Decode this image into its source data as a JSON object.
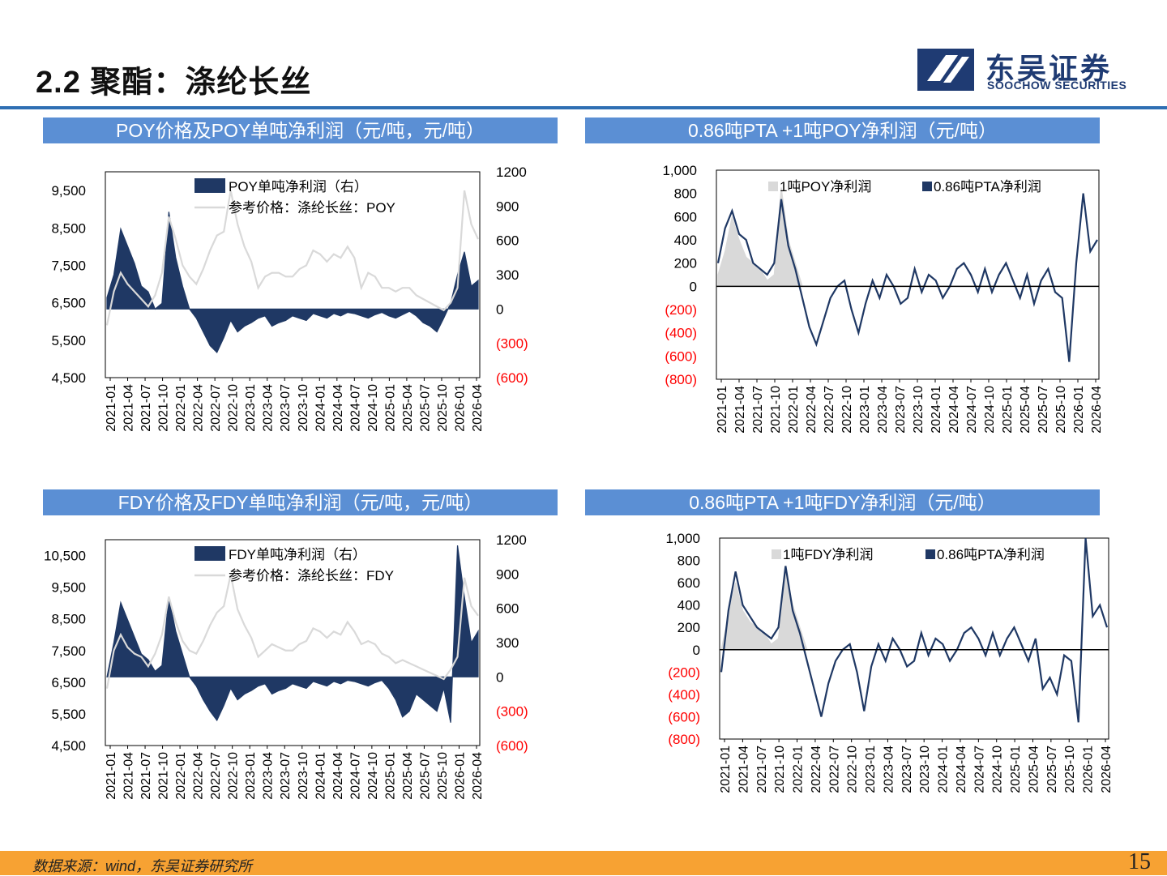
{
  "page": {
    "title": "2.2 聚酯：涤纶长丝",
    "logo": {
      "name_cn": "东吴证券",
      "name_en": "SOOCHOW SECURITIES"
    },
    "source": "数据来源：wind，东吴证券研究所",
    "page_number": "15"
  },
  "colors": {
    "navy": "#1f3864",
    "gray": "#d9d9d9",
    "band": "#5b8fd4",
    "negative": "#ff0000",
    "footer": "#f7a233"
  },
  "chart_data": [
    {
      "type": "area",
      "title": "POY价格及POY单吨净利润（元/吨，元/吨）",
      "x_ticks": [
        "2021-01",
        "2021-04",
        "2021-07",
        "2021-10",
        "2022-01",
        "2022-04",
        "2022-07",
        "2022-10",
        "2023-01",
        "2023-04",
        "2023-07",
        "2023-10",
        "2024-01",
        "2024-04",
        "2024-07",
        "2024-10",
        "2025-01",
        "2025-04",
        "2025-07",
        "2025-10",
        "2026-01",
        "2026-04"
      ],
      "y_left": {
        "ticks": [
          "9,500",
          "8,500",
          "7,500",
          "6,500",
          "5,500",
          "4,500"
        ],
        "range": [
          4500,
          10000
        ]
      },
      "y_right": {
        "ticks": [
          "1200",
          "900",
          "600",
          "300",
          "0",
          "(300)",
          "(600)"
        ],
        "range": [
          -600,
          1200
        ]
      },
      "legend": [
        "POY单吨净利润（右）",
        "参考价格：涤纶长丝：POY"
      ],
      "series": [
        {
          "name": "POY单吨净利润（右）",
          "axis": "right",
          "values": [
            100,
            300,
            700,
            550,
            400,
            200,
            150,
            0,
            50,
            850,
            450,
            200,
            0,
            -80,
            -200,
            -320,
            -380,
            -250,
            -100,
            -200,
            -150,
            -120,
            -80,
            -60,
            -150,
            -120,
            -100,
            -60,
            -80,
            -100,
            -40,
            -60,
            -80,
            -40,
            -60,
            -30,
            -40,
            -60,
            -80,
            -50,
            -30,
            -60,
            -80,
            -50,
            -20,
            -60,
            -120,
            -150,
            -200,
            -80,
            50,
            300,
            500,
            200,
            250
          ]
        },
        {
          "name": "参考价格：涤纶长丝：POY",
          "axis": "left",
          "values": [
            5900,
            6800,
            7300,
            7000,
            6800,
            6600,
            6400,
            6700,
            7300,
            8800,
            8200,
            7500,
            7200,
            7000,
            7400,
            7900,
            8300,
            8400,
            9500,
            8600,
            8000,
            7600,
            6900,
            7200,
            7300,
            7300,
            7200,
            7200,
            7400,
            7500,
            7900,
            7800,
            7600,
            7800,
            7700,
            8000,
            7700,
            6900,
            7300,
            7200,
            6900,
            6900,
            6800,
            6900,
            6900,
            6700,
            6600,
            6500,
            6400,
            6300,
            6500,
            6900,
            9500,
            8600,
            8200
          ]
        }
      ]
    },
    {
      "type": "area",
      "title": "0.86吨PTA +1吨POY净利润（元/吨）",
      "x_ticks": [
        "2021-01",
        "2021-04",
        "2021-07",
        "2021-10",
        "2022-01",
        "2022-04",
        "2022-07",
        "2022-10",
        "2023-01",
        "2023-04",
        "2023-07",
        "2023-10",
        "2024-01",
        "2024-04",
        "2024-07",
        "2024-10",
        "2025-01",
        "2025-04",
        "2025-07",
        "2025-10",
        "2026-01",
        "2026-04"
      ],
      "y": {
        "ticks": [
          "1,000",
          "800",
          "600",
          "400",
          "200",
          "0",
          "(200)",
          "(400)",
          "(600)",
          "(800)"
        ],
        "range": [
          -800,
          1000
        ]
      },
      "legend": [
        "1吨POY净利润",
        "0.86吨PTA净利润"
      ],
      "series": [
        {
          "name": "1吨POY净利润",
          "values": [
            100,
            300,
            600,
            400,
            250,
            200,
            150,
            50,
            100,
            850,
            400,
            200,
            0,
            0,
            0,
            0,
            0,
            0,
            0,
            0,
            0,
            0,
            0,
            0,
            0,
            0,
            0,
            0,
            0,
            0,
            0,
            0,
            0,
            0,
            0,
            0,
            0,
            0,
            0,
            0,
            0,
            0,
            0,
            0,
            0,
            0,
            0,
            0,
            0,
            0,
            0,
            0,
            0,
            0,
            0
          ]
        },
        {
          "name": "0.86吨PTA净利润",
          "values": [
            200,
            500,
            650,
            450,
            400,
            200,
            150,
            100,
            200,
            750,
            350,
            150,
            -100,
            -350,
            -500,
            -300,
            -100,
            0,
            50,
            -200,
            -400,
            -150,
            50,
            -100,
            100,
            0,
            -150,
            -100,
            150,
            -50,
            100,
            50,
            -100,
            0,
            150,
            200,
            100,
            -50,
            150,
            -50,
            100,
            200,
            50,
            -100,
            100,
            -150,
            50,
            150,
            -50,
            -100,
            -650,
            200,
            800,
            300,
            400
          ]
        }
      ]
    },
    {
      "type": "area",
      "title": "FDY价格及FDY单吨净利润（元/吨，元/吨）",
      "x_ticks": [
        "2021-01",
        "2021-04",
        "2021-07",
        "2021-10",
        "2022-01",
        "2022-04",
        "2022-07",
        "2022-10",
        "2023-01",
        "2023-04",
        "2023-07",
        "2023-10",
        "2024-01",
        "2024-04",
        "2024-07",
        "2024-10",
        "2025-01",
        "2025-04",
        "2025-07",
        "2025-10",
        "2026-01",
        "2026-04"
      ],
      "y_left": {
        "ticks": [
          "10,500",
          "9,500",
          "8,500",
          "7,500",
          "6,500",
          "5,500",
          "4,500"
        ],
        "range": [
          4500,
          11000
        ]
      },
      "y_right": {
        "ticks": [
          "1200",
          "900",
          "600",
          "300",
          "0",
          "(300)",
          "(600)"
        ],
        "range": [
          -600,
          1200
        ]
      },
      "legend": [
        "FDY单吨净利润（右）",
        "参考价格：涤纶长丝：FDY"
      ],
      "series": [
        {
          "name": "FDY单吨净利润（右）",
          "axis": "right",
          "values": [
            0,
            300,
            650,
            500,
            350,
            200,
            150,
            50,
            100,
            700,
            400,
            200,
            0,
            -80,
            -200,
            -300,
            -380,
            -250,
            -100,
            -200,
            -150,
            -120,
            -80,
            -60,
            -150,
            -120,
            -100,
            -60,
            -80,
            -100,
            -40,
            -60,
            -80,
            -40,
            -60,
            -30,
            -40,
            -60,
            -80,
            -50,
            -30,
            -100,
            -200,
            -350,
            -300,
            -150,
            -200,
            -250,
            -300,
            -100,
            -400,
            1150,
            700,
            300,
            400
          ]
        },
        {
          "name": "参考价格：涤纶长丝：FDY",
          "axis": "left",
          "values": [
            6300,
            7500,
            8000,
            7600,
            7400,
            7300,
            7000,
            7400,
            8000,
            9200,
            8400,
            7800,
            7500,
            7400,
            7800,
            8300,
            8700,
            8900,
            9900,
            8800,
            8300,
            7900,
            7300,
            7500,
            7700,
            7600,
            7500,
            7500,
            7700,
            7800,
            8200,
            8100,
            7900,
            8100,
            8000,
            8400,
            8100,
            7700,
            7800,
            7700,
            7400,
            7300,
            7100,
            7200,
            7100,
            7000,
            6900,
            6800,
            6700,
            6600,
            6900,
            7300,
            9800,
            8900,
            8600
          ]
        }
      ]
    },
    {
      "type": "area",
      "title": "0.86吨PTA +1吨FDY净利润（元/吨）",
      "x_ticks": [
        "2021-01",
        "2021-04",
        "2021-07",
        "2021-10",
        "2022-01",
        "2022-04",
        "2022-07",
        "2022-10",
        "2023-01",
        "2023-04",
        "2023-07",
        "2023-10",
        "2024-01",
        "2024-04",
        "2024-07",
        "2024-10",
        "2025-01",
        "2025-04",
        "2025-07",
        "2025-10",
        "2026-01",
        "2026-04"
      ],
      "y": {
        "ticks": [
          "1,000",
          "800",
          "600",
          "400",
          "200",
          "0",
          "(200)",
          "(400)",
          "(600)",
          "(800)"
        ],
        "range": [
          -800,
          1000
        ]
      },
      "legend": [
        "1吨FDY净利润",
        "0.86吨PTA净利润"
      ],
      "series": [
        {
          "name": "1吨FDY净利润",
          "values": [
            0,
            300,
            600,
            350,
            250,
            200,
            150,
            50,
            100,
            700,
            400,
            200,
            0,
            0,
            0,
            0,
            0,
            0,
            0,
            0,
            0,
            0,
            0,
            0,
            0,
            0,
            0,
            0,
            0,
            0,
            0,
            0,
            0,
            0,
            0,
            0,
            0,
            0,
            0,
            0,
            0,
            0,
            0,
            0,
            0,
            0,
            0,
            0,
            0,
            0,
            0,
            0,
            0,
            0,
            0
          ]
        },
        {
          "name": "0.86吨PTA净利润",
          "values": [
            -200,
            350,
            700,
            400,
            300,
            200,
            150,
            100,
            200,
            750,
            350,
            150,
            -100,
            -350,
            -600,
            -300,
            -100,
            0,
            50,
            -200,
            -550,
            -150,
            50,
            -100,
            100,
            0,
            -150,
            -100,
            150,
            -50,
            100,
            50,
            -100,
            0,
            150,
            200,
            100,
            -50,
            150,
            -50,
            100,
            200,
            50,
            -100,
            100,
            -350,
            -250,
            -400,
            -50,
            -100,
            -650,
            1000,
            300,
            400,
            200
          ]
        }
      ]
    }
  ]
}
